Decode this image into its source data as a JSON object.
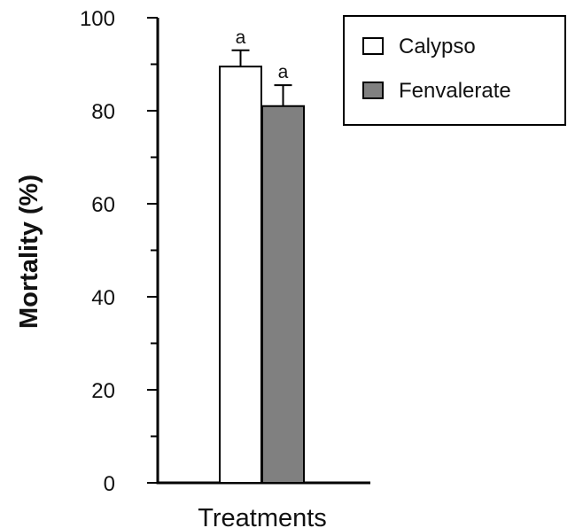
{
  "chart_data": {
    "type": "bar",
    "xlabel": "Treatments",
    "ylabel": "Mortality (%)",
    "ylim": [
      0,
      100
    ],
    "yticks": [
      "0",
      "20",
      "40",
      "60",
      "80",
      "100"
    ],
    "categories": [
      ""
    ],
    "series": [
      {
        "name": "Calypso",
        "values": [
          89.5
        ],
        "error": [
          3.5
        ],
        "annotation": "a",
        "color": "#ffffff"
      },
      {
        "name": "Fenvalerate",
        "values": [
          81
        ],
        "error": [
          4.5
        ],
        "annotation": "a",
        "color": "#808080"
      }
    ],
    "legend": {
      "placement": "top-right"
    },
    "grid": false
  }
}
